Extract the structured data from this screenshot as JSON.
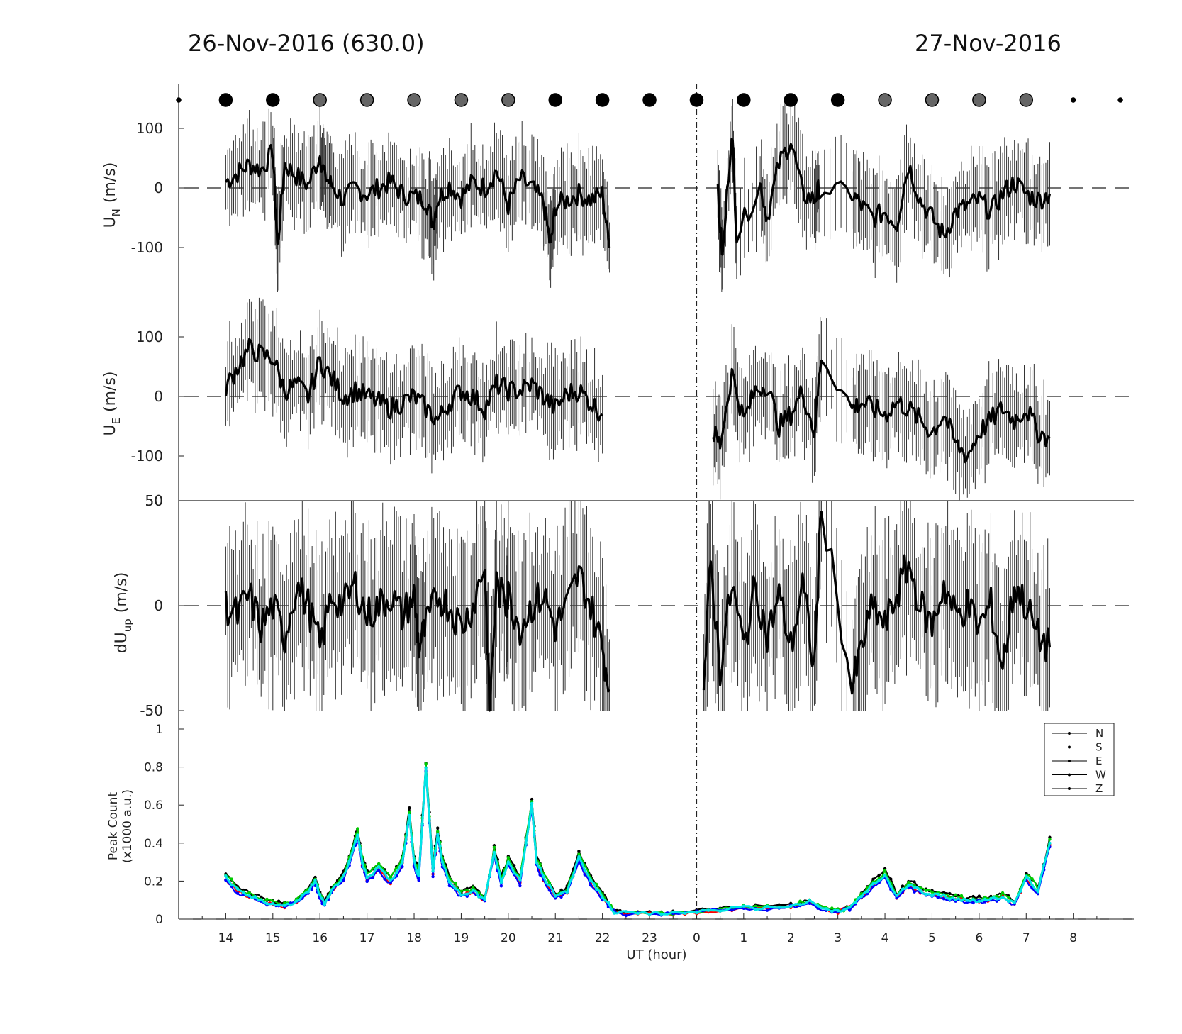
{
  "header": {
    "left_title": "26-Nov-2016 (630.0)",
    "right_title": "27-Nov-2016"
  },
  "chart_data": [
    {
      "type": "line",
      "panel": "UN",
      "ylabel": "U_N (m/s)",
      "ylabel_main": "U",
      "ylabel_sub": "N",
      "ylabel_unit": "(m/s)",
      "yticks": [
        "100",
        "0",
        "-100"
      ],
      "ylim": [
        -175,
        175
      ],
      "zero_line": "dashed",
      "x_unit": "UT hour (continuous, 24 = 0 on 27-Nov)",
      "series": [
        {
          "x": [
            14.0,
            14.25,
            14.5,
            14.75,
            15.0,
            15.1,
            15.25,
            15.5,
            15.75,
            16.0,
            16.1,
            16.25,
            16.5,
            16.75,
            17.0,
            17.25,
            17.5,
            17.75,
            18.0,
            18.25,
            18.4,
            18.5,
            18.75,
            19.0,
            19.25,
            19.5,
            19.75,
            20.0,
            20.25,
            20.5,
            20.75,
            20.9,
            21.0,
            21.25,
            21.5,
            21.75,
            22.0,
            22.15
          ],
          "y": [
            10,
            25,
            40,
            30,
            60,
            -100,
            40,
            20,
            5,
            55,
            20,
            5,
            -20,
            0,
            -10,
            0,
            10,
            -10,
            -15,
            -20,
            -60,
            -20,
            5,
            -15,
            10,
            0,
            30,
            -30,
            15,
            0,
            -25,
            -100,
            -30,
            -20,
            -10,
            -20,
            -10,
            -100
          ],
          "err": 60
        },
        {
          "x": [
            24.45,
            24.55,
            24.75,
            24.85,
            25.35,
            25.5,
            25.75,
            26.0,
            26.25,
            26.5,
            26.6,
            27.3,
            27.5,
            27.75,
            28.0,
            28.25,
            28.5,
            28.75,
            29.0,
            29.25,
            29.5,
            29.75,
            30.0,
            30.25,
            30.5,
            30.75,
            31.0,
            31.25,
            31.5
          ],
          "y": [
            -10,
            -120,
            100,
            -80,
            5,
            -50,
            40,
            80,
            -10,
            -20,
            0,
            -10,
            -30,
            -50,
            -40,
            -60,
            40,
            -20,
            -50,
            -80,
            -40,
            -30,
            -20,
            -40,
            -10,
            10,
            -10,
            -20,
            -10
          ],
          "err": 60
        }
      ]
    },
    {
      "type": "line",
      "panel": "UE",
      "ylabel": "U_E (m/s)",
      "ylabel_main": "U",
      "ylabel_sub": "E",
      "ylabel_unit": "(m/s)",
      "yticks": [
        "100",
        "0",
        "-100"
      ],
      "ylim": [
        -175,
        175
      ],
      "zero_line": "dashed",
      "series": [
        {
          "x": [
            14.0,
            14.25,
            14.5,
            14.75,
            15.0,
            15.25,
            15.5,
            15.75,
            16.0,
            16.25,
            16.5,
            16.75,
            17.0,
            17.25,
            17.5,
            17.75,
            18.0,
            18.25,
            18.5,
            18.75,
            19.0,
            19.25,
            19.5,
            19.75,
            20.0,
            20.25,
            20.5,
            20.75,
            21.0,
            21.25,
            21.5,
            21.75,
            22.0
          ],
          "y": [
            15,
            50,
            80,
            70,
            65,
            10,
            20,
            0,
            60,
            30,
            0,
            10,
            0,
            -10,
            -20,
            -10,
            0,
            -20,
            -40,
            -10,
            10,
            0,
            -20,
            20,
            10,
            10,
            20,
            0,
            -20,
            5,
            10,
            -10,
            -30
          ],
          "err": 60
        },
        {
          "x": [
            24.35,
            24.5,
            24.75,
            25.0,
            25.25,
            25.5,
            25.75,
            26.0,
            26.25,
            26.5,
            26.65,
            27.3,
            27.5,
            27.75,
            28.0,
            28.25,
            28.5,
            28.75,
            29.0,
            29.25,
            29.5,
            29.75,
            30.0,
            30.25,
            30.5,
            30.75,
            31.0,
            31.25,
            31.5
          ],
          "y": [
            -60,
            -80,
            40,
            -40,
            10,
            20,
            -50,
            -30,
            10,
            -60,
            70,
            -20,
            -10,
            -20,
            -30,
            -10,
            -20,
            -40,
            -60,
            -30,
            -80,
            -100,
            -60,
            -40,
            -20,
            -40,
            -20,
            -60,
            -70
          ],
          "err": 60
        }
      ]
    },
    {
      "type": "line",
      "panel": "dUup",
      "ylabel": "dU_up (m/s)",
      "ylabel_main": "dU",
      "ylabel_sub": "up",
      "ylabel_unit": "(m/s)",
      "yticks": [
        "50",
        "0",
        "-50"
      ],
      "top_tick": "50",
      "ylim": [
        -50,
        50
      ],
      "zero_line": "dashed",
      "series": [
        {
          "x": [
            14.0,
            14.25,
            14.5,
            14.75,
            15.0,
            15.25,
            15.5,
            15.75,
            16.0,
            16.25,
            16.5,
            16.75,
            17.0,
            17.25,
            17.5,
            17.75,
            18.0,
            18.1,
            18.25,
            18.5,
            18.75,
            19.0,
            19.25,
            19.5,
            19.6,
            19.75,
            19.95,
            20.0,
            20.25,
            20.5,
            20.75,
            21.0,
            21.25,
            21.5,
            21.75,
            22.0,
            22.15
          ],
          "y": [
            0,
            -5,
            5,
            -10,
            0,
            -15,
            10,
            0,
            -20,
            5,
            0,
            10,
            -5,
            0,
            5,
            -5,
            5,
            -20,
            -10,
            5,
            0,
            -10,
            0,
            20,
            -50,
            10,
            0,
            5,
            -10,
            0,
            5,
            -10,
            0,
            15,
            0,
            -20,
            -40
          ],
          "err": 30
        },
        {
          "x": [
            24.15,
            24.3,
            24.5,
            24.75,
            25.0,
            25.25,
            25.5,
            25.75,
            26.0,
            26.25,
            26.5,
            26.65,
            27.3,
            27.5,
            27.75,
            28.0,
            28.25,
            28.5,
            28.75,
            29.0,
            29.25,
            29.5,
            29.75,
            30.0,
            30.25,
            30.5,
            30.75,
            31.0,
            31.25,
            31.5
          ],
          "y": [
            -40,
            20,
            -30,
            10,
            -20,
            10,
            -15,
            5,
            -20,
            10,
            -30,
            50,
            -40,
            -20,
            0,
            -10,
            5,
            20,
            0,
            -10,
            10,
            -5,
            0,
            -10,
            0,
            -30,
            10,
            0,
            -15,
            -20
          ],
          "err": 30
        }
      ]
    },
    {
      "type": "line",
      "panel": "peak",
      "ylabel_line1": "Peak Count",
      "ylabel_line2": "(x1000 a.u.)",
      "xlabel": "UT (hour)",
      "ylim": [
        0,
        1
      ],
      "yticks": [
        "1",
        "0.8",
        "0.6",
        "0.4",
        "0.2",
        "0"
      ],
      "xticks": [
        "14",
        "15",
        "16",
        "17",
        "18",
        "19",
        "20",
        "21",
        "22",
        "23",
        "0",
        "1",
        "2",
        "3",
        "4",
        "5",
        "6",
        "7",
        "8"
      ],
      "legend_position": "top-right",
      "legend": [
        "N",
        "S",
        "E",
        "W",
        "Z"
      ],
      "x": [
        14.0,
        14.25,
        14.5,
        14.75,
        15.0,
        15.25,
        15.5,
        15.75,
        15.9,
        16.0,
        16.1,
        16.25,
        16.5,
        16.75,
        16.8,
        16.9,
        17.0,
        17.25,
        17.5,
        17.75,
        17.9,
        18.0,
        18.1,
        18.25,
        18.4,
        18.5,
        18.6,
        18.75,
        19.0,
        19.25,
        19.5,
        19.7,
        19.85,
        20.0,
        20.25,
        20.5,
        20.6,
        20.75,
        21.0,
        21.25,
        21.5,
        21.75,
        22.0,
        22.25,
        22.5,
        23.0,
        23.5,
        24.0,
        24.5,
        25.0,
        25.5,
        26.0,
        26.4,
        26.75,
        27.0,
        27.25,
        27.5,
        27.75,
        28.0,
        28.25,
        28.5,
        28.75,
        29.0,
        29.25,
        29.5,
        29.75,
        30.0,
        30.25,
        30.5,
        30.75,
        31.0,
        31.25,
        31.5
      ],
      "series": [
        {
          "name": "N",
          "color": "#000000",
          "offset": 0.03
        },
        {
          "name": "S",
          "color": "#ff0000",
          "offset": -0.01
        },
        {
          "name": "E",
          "color": "#00cc00",
          "offset": 0.02
        },
        {
          "name": "W",
          "color": "#0000ff",
          "offset": -0.02
        },
        {
          "name": "Z",
          "color": "#00e5e5",
          "offset": 0.0
        }
      ],
      "base_values": [
        0.22,
        0.15,
        0.12,
        0.1,
        0.08,
        0.07,
        0.09,
        0.15,
        0.2,
        0.12,
        0.08,
        0.15,
        0.22,
        0.4,
        0.45,
        0.3,
        0.22,
        0.27,
        0.2,
        0.3,
        0.55,
        0.3,
        0.22,
        0.8,
        0.25,
        0.45,
        0.3,
        0.2,
        0.13,
        0.15,
        0.1,
        0.35,
        0.2,
        0.3,
        0.2,
        0.6,
        0.3,
        0.22,
        0.12,
        0.15,
        0.32,
        0.2,
        0.12,
        0.04,
        0.03,
        0.03,
        0.03,
        0.04,
        0.05,
        0.06,
        0.06,
        0.07,
        0.09,
        0.05,
        0.04,
        0.06,
        0.12,
        0.18,
        0.23,
        0.12,
        0.18,
        0.15,
        0.13,
        0.12,
        0.11,
        0.1,
        0.1,
        0.1,
        0.12,
        0.08,
        0.22,
        0.15,
        0.4
      ]
    }
  ],
  "top_markers": {
    "x": [
      13.0,
      14.0,
      15.0,
      16.0,
      17.0,
      18.0,
      19.0,
      20.0,
      21.0,
      22.0,
      23.0,
      24.0,
      25.0,
      26.0,
      27.0,
      28.0,
      29.0,
      30.0,
      31.0,
      32.0,
      33.0
    ],
    "kinds": [
      "small",
      "black",
      "black",
      "gray",
      "gray",
      "gray",
      "gray",
      "gray",
      "black",
      "black",
      "black",
      "black",
      "black",
      "black",
      "black",
      "gray",
      "gray",
      "gray",
      "gray",
      "small",
      "small"
    ],
    "colors": {
      "black": "#000000",
      "gray": "#666666"
    }
  },
  "separator_x": 24.0
}
